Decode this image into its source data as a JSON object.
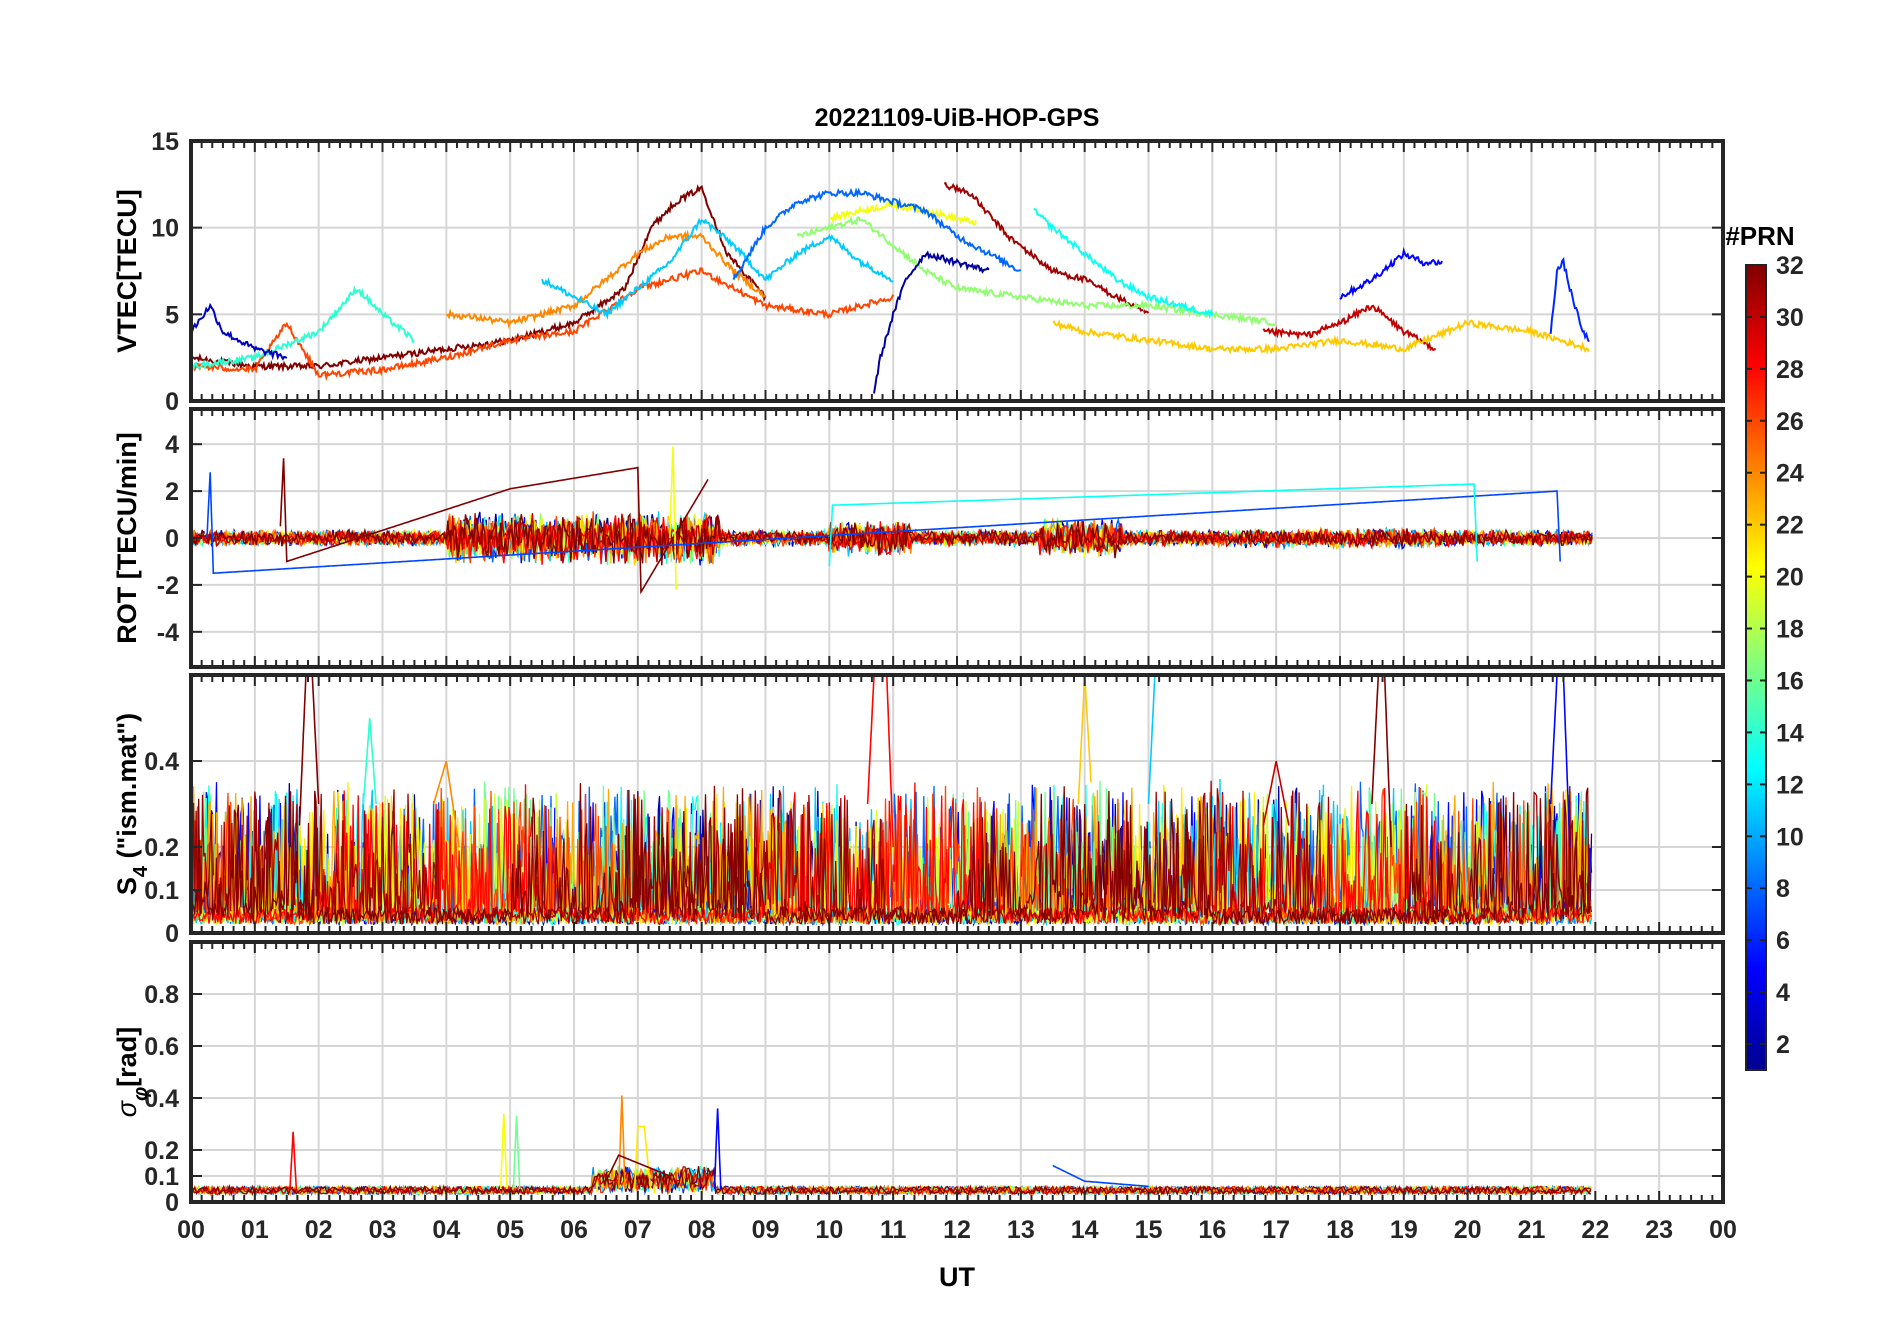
{
  "chart_data": {
    "type": "line",
    "title": "20221109-UiB-HOP-GPS",
    "xlabel": "UT",
    "x_unit": "hours UT",
    "xlim": [
      0,
      24
    ],
    "x_tick_labels": [
      "00",
      "01",
      "02",
      "03",
      "04",
      "05",
      "06",
      "07",
      "08",
      "09",
      "10",
      "11",
      "12",
      "13",
      "14",
      "15",
      "16",
      "17",
      "18",
      "19",
      "20",
      "21",
      "22",
      "23",
      "00"
    ],
    "grid": true,
    "colorbar": {
      "label": "#PRN",
      "range": [
        1,
        32
      ],
      "colormap": "jet",
      "tick_labels": [
        "2",
        "4",
        "6",
        "8",
        "10",
        "12",
        "14",
        "16",
        "18",
        "20",
        "22",
        "24",
        "26",
        "28",
        "30",
        "32"
      ]
    },
    "panels": [
      {
        "id": "vtec",
        "ylabel": "VTEC[TECU]",
        "ylim": [
          0,
          15
        ],
        "y_ticks": [
          0,
          5,
          10,
          15
        ],
        "y_tick_labels": [
          "0",
          "5",
          "10",
          "15"
        ],
        "series": [
          {
            "prn": 32,
            "x": [
              0,
              1,
              2,
              3,
              4,
              5,
              6,
              6.8,
              7.2,
              7.6,
              8.0,
              8.4,
              9.0
            ],
            "y": [
              2.5,
              2.0,
              2.0,
              2.5,
              3.0,
              3.5,
              4.5,
              6.5,
              10.0,
              11.5,
              12.3,
              8.5,
              6.0
            ]
          },
          {
            "prn": 31,
            "x": [
              11.8,
              12.2,
              12.8,
              13.5,
              14.0,
              14.5,
              15.0
            ],
            "y": [
              12.5,
              12.0,
              9.5,
              7.5,
              7.0,
              6.0,
              5.0
            ]
          },
          {
            "prn": 30,
            "x": [
              16.8,
              17.5,
              18.0,
              18.5,
              19.0,
              19.5
            ],
            "y": [
              4.0,
              3.8,
              4.5,
              5.5,
              4.0,
              3.0
            ]
          },
          {
            "prn": 26,
            "x": [
              0,
              1.0,
              1.5,
              2.0,
              3.0,
              4.0,
              5.0,
              6.0,
              7.0,
              8.0,
              9.0,
              10.0,
              11.0
            ],
            "y": [
              2.0,
              1.8,
              4.5,
              1.5,
              1.8,
              2.5,
              3.5,
              4.0,
              6.5,
              7.5,
              5.5,
              5.0,
              6.0
            ]
          },
          {
            "prn": 24,
            "x": [
              4.0,
              4.5,
              5.0,
              5.5,
              6.0,
              6.5,
              7.0,
              7.5,
              8.0,
              8.5,
              9.0
            ],
            "y": [
              5.0,
              4.8,
              4.5,
              5.0,
              5.5,
              7.0,
              8.5,
              9.5,
              9.5,
              7.5,
              6.0
            ]
          },
          {
            "prn": 22,
            "x": [
              13.5,
              14.0,
              15.0,
              16.0,
              17.0,
              18.0,
              19.0,
              20.0,
              21.0,
              21.9
            ],
            "y": [
              4.5,
              4.0,
              3.5,
              3.0,
              3.0,
              3.5,
              3.0,
              4.5,
              4.0,
              3.0
            ]
          },
          {
            "prn": 20,
            "x": [
              10.0,
              10.5,
              11.0,
              11.5,
              12.0,
              12.3
            ],
            "y": [
              10.5,
              11.0,
              11.3,
              11.0,
              10.5,
              10.3
            ]
          },
          {
            "prn": 17,
            "x": [
              9.5,
              10.0,
              10.5,
              11.0,
              11.5,
              12.0,
              13.0,
              14.0,
              15.0,
              16.0,
              17.0
            ],
            "y": [
              9.5,
              10.0,
              10.5,
              9.0,
              7.5,
              6.5,
              6.0,
              5.5,
              5.5,
              5.0,
              4.5
            ]
          },
          {
            "prn": 14,
            "x": [
              0,
              1.0,
              2.0,
              2.6,
              3.0,
              3.5
            ],
            "y": [
              2.0,
              2.5,
              4.0,
              6.5,
              5.0,
              3.5
            ]
          },
          {
            "prn": 13,
            "x": [
              13.2,
              13.5,
              14.0,
              14.5,
              15.0,
              15.5,
              16.0
            ],
            "y": [
              11.0,
              10.0,
              8.5,
              7.0,
              6.0,
              5.5,
              5.0
            ]
          },
          {
            "prn": 11,
            "x": [
              5.5,
              6.0,
              6.5,
              7.0,
              7.5,
              8.0,
              8.5,
              9.0,
              9.5,
              10.0,
              10.5,
              11.0
            ],
            "y": [
              7.0,
              6.0,
              5.0,
              6.5,
              8.0,
              10.5,
              9.0,
              7.0,
              8.5,
              9.5,
              8.0,
              7.0
            ]
          },
          {
            "prn": 8,
            "x": [
              8.5,
              9.0,
              9.5,
              10.0,
              10.5,
              11.0,
              11.5,
              12.0,
              12.5,
              13.0
            ],
            "y": [
              7.0,
              10.0,
              11.5,
              12.0,
              12.0,
              11.5,
              11.0,
              9.5,
              8.5,
              7.5
            ]
          },
          {
            "prn": 5,
            "x": [
              18.0,
              18.5,
              19.0,
              19.3,
              19.6
            ],
            "y": [
              6.0,
              7.0,
              8.5,
              8.0,
              8.0
            ]
          },
          {
            "prn": 3,
            "x": [
              0,
              0.3,
              0.5,
              1.0,
              1.5
            ],
            "y": [
              4.0,
              5.5,
              4.0,
              3.0,
              2.5
            ]
          },
          {
            "prn": 2,
            "x": [
              10.7,
              10.8,
              11.0,
              11.2,
              11.5,
              12.0,
              12.5
            ],
            "y": [
              0.5,
              2.5,
              5.0,
              7.0,
              8.5,
              8.0,
              7.5
            ]
          },
          {
            "prn": 6,
            "x": [
              21.3,
              21.4,
              21.5,
              21.6,
              21.8,
              21.9
            ],
            "y": [
              4.0,
              7.5,
              8.0,
              6.5,
              4.0,
              3.5
            ]
          }
        ]
      },
      {
        "id": "rot",
        "ylabel": "ROT [TECU/min]",
        "ylim": [
          -5.5,
          5.5
        ],
        "y_ticks": [
          -4,
          -2,
          0,
          2,
          4
        ],
        "y_tick_labels": [
          "-4",
          "-2",
          "0",
          "2",
          "4"
        ],
        "series": [
          {
            "prn": 32,
            "x": [
              1.4,
              1.45,
              1.5,
              5.0,
              7.0,
              7.05,
              8.1
            ],
            "y": [
              0.5,
              3.4,
              -1.0,
              2.1,
              3.0,
              -2.3,
              2.5
            ]
          },
          {
            "prn": 20,
            "x": [
              7.5,
              7.55,
              7.6
            ],
            "y": [
              0.0,
              3.9,
              -2.2
            ]
          },
          {
            "prn": 7,
            "x": [
              0.25,
              0.3,
              0.35,
              21.4,
              21.45
            ],
            "y": [
              0.0,
              2.8,
              -1.5,
              2.0,
              -1.0
            ]
          },
          {
            "prn": 13,
            "x": [
              10.0,
              10.05,
              20.1,
              20.15
            ],
            "y": [
              -1.2,
              1.4,
              2.3,
              -1.0
            ]
          }
        ]
      },
      {
        "id": "s4",
        "ylabel_main": "S",
        "ylabel_sub": "4",
        "ylabel_rest": " (\"ism.mat\")",
        "ylim": [
          0,
          0.6
        ],
        "y_ticks": [
          0,
          0.1,
          0.2,
          0.4
        ],
        "y_tick_labels": [
          "0",
          "0.1",
          "0.2",
          "0.4"
        ],
        "series": [
          {
            "prn": 32,
            "x": [
              1.7,
              1.8,
              1.9,
              2.0
            ],
            "y": [
              0.25,
              0.6,
              0.6,
              0.3
            ]
          },
          {
            "prn": 28,
            "x": [
              10.6,
              10.7,
              10.9,
              11.0
            ],
            "y": [
              0.3,
              0.6,
              0.6,
              0.2
            ]
          },
          {
            "prn": 11,
            "x": [
              15.0,
              15.1,
              15.2
            ],
            "y": [
              0.3,
              0.6,
              0.6
            ]
          },
          {
            "prn": 22,
            "x": [
              13.9,
              14.0,
              14.1
            ],
            "y": [
              0.3,
              0.6,
              0.35
            ]
          },
          {
            "prn": 32,
            "x": [
              18.5,
              18.6,
              18.7,
              18.8
            ],
            "y": [
              0.3,
              0.6,
              0.6,
              0.2
            ]
          },
          {
            "prn": 5,
            "x": [
              21.3,
              21.4,
              21.5,
              21.6
            ],
            "y": [
              0.3,
              0.6,
              0.6,
              0.2
            ]
          },
          {
            "prn": 30,
            "x": [
              16.8,
              17.0,
              17.2
            ],
            "y": [
              0.25,
              0.4,
              0.25
            ]
          },
          {
            "prn": 14,
            "x": [
              2.7,
              2.8,
              2.9
            ],
            "y": [
              0.3,
              0.5,
              0.3
            ]
          },
          {
            "prn": 24,
            "x": [
              3.8,
              4.0,
              4.2
            ],
            "y": [
              0.3,
              0.4,
              0.2
            ]
          }
        ]
      },
      {
        "id": "sigma_phi",
        "ylabel_main": "σ",
        "ylabel_sub": "φ",
        "ylabel_rest": "[rad]",
        "ylim": [
          0,
          1
        ],
        "y_ticks": [
          0,
          0.1,
          0.2,
          0.4,
          0.6,
          0.8
        ],
        "y_tick_labels": [
          "0",
          "0.1",
          "0.2",
          "0.4",
          "0.6",
          "0.8"
        ],
        "series": [
          {
            "prn": 28,
            "x": [
              1.55,
              1.6,
              1.65
            ],
            "y": [
              0.05,
              0.27,
              0.05
            ]
          },
          {
            "prn": 20,
            "x": [
              4.85,
              4.9,
              4.95
            ],
            "y": [
              0.05,
              0.34,
              0.05
            ]
          },
          {
            "prn": 16,
            "x": [
              5.05,
              5.1,
              5.15
            ],
            "y": [
              0.05,
              0.33,
              0.05
            ]
          },
          {
            "prn": 24,
            "x": [
              6.7,
              6.75,
              6.8
            ],
            "y": [
              0.05,
              0.41,
              0.05
            ]
          },
          {
            "prn": 21,
            "x": [
              6.95,
              7.0,
              7.1,
              7.2
            ],
            "y": [
              0.05,
              0.29,
              0.29,
              0.05
            ]
          },
          {
            "prn": 5,
            "x": [
              8.2,
              8.25,
              8.3
            ],
            "y": [
              0.05,
              0.36,
              0.05
            ]
          },
          {
            "prn": 32,
            "x": [
              6.5,
              6.7,
              7.0,
              7.5
            ],
            "y": [
              0.08,
              0.18,
              0.15,
              0.1
            ]
          },
          {
            "prn": 7,
            "x": [
              13.5,
              14.0,
              15.0
            ],
            "y": [
              0.14,
              0.08,
              0.06
            ]
          }
        ]
      }
    ],
    "data_end_hour": 21.95
  }
}
